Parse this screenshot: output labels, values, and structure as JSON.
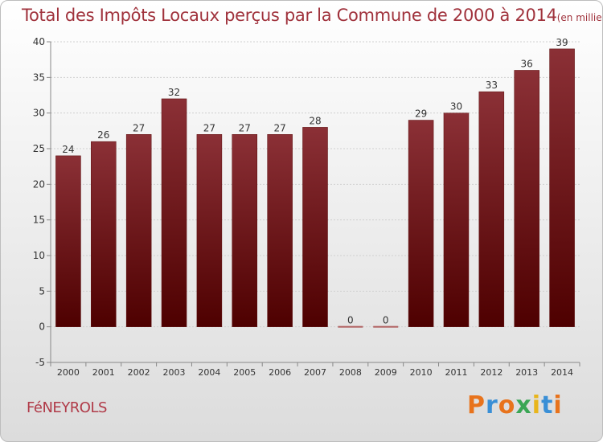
{
  "header": {
    "title": "Total des Impôts Locaux perçus par la Commune de 2000 à 2014",
    "unit": "(en milliers d'€)"
  },
  "footer": {
    "commune": "FéNEYROLS",
    "brand": "Proxiti",
    "brand_letters": [
      "P",
      "r",
      "o",
      "x",
      "i",
      "t",
      "i"
    ],
    "brand_colors": [
      "#e8731c",
      "#3a8fd6",
      "#e8731c",
      "#3aa655",
      "#e8b51c",
      "#3a8fd6",
      "#e8731c"
    ]
  },
  "chart_data": {
    "type": "bar",
    "title": "Total des Impôts Locaux perçus par la Commune de 2000 à 2014",
    "xlabel": "",
    "ylabel": "",
    "categories": [
      "2000",
      "2001",
      "2002",
      "2003",
      "2004",
      "2005",
      "2006",
      "2007",
      "2008",
      "2009",
      "2010",
      "2011",
      "2012",
      "2013",
      "2014"
    ],
    "values": [
      24,
      26,
      27,
      32,
      27,
      27,
      27,
      28,
      0,
      0,
      29,
      30,
      33,
      36,
      39
    ],
    "data_labels": [
      "24",
      "26",
      "27",
      "32",
      "27",
      "27",
      "27",
      "28",
      "0",
      "0",
      "29",
      "30",
      "33",
      "36",
      "39"
    ],
    "ylim": [
      -5,
      40
    ],
    "yticks": [
      -5,
      0,
      5,
      10,
      15,
      20,
      25,
      30,
      35,
      40
    ],
    "grid": true,
    "colors": {
      "bar_top": "#8b3036",
      "bar_bottom": "#4e0000",
      "grid": "#d0d0d0",
      "axis": "#888888"
    }
  }
}
